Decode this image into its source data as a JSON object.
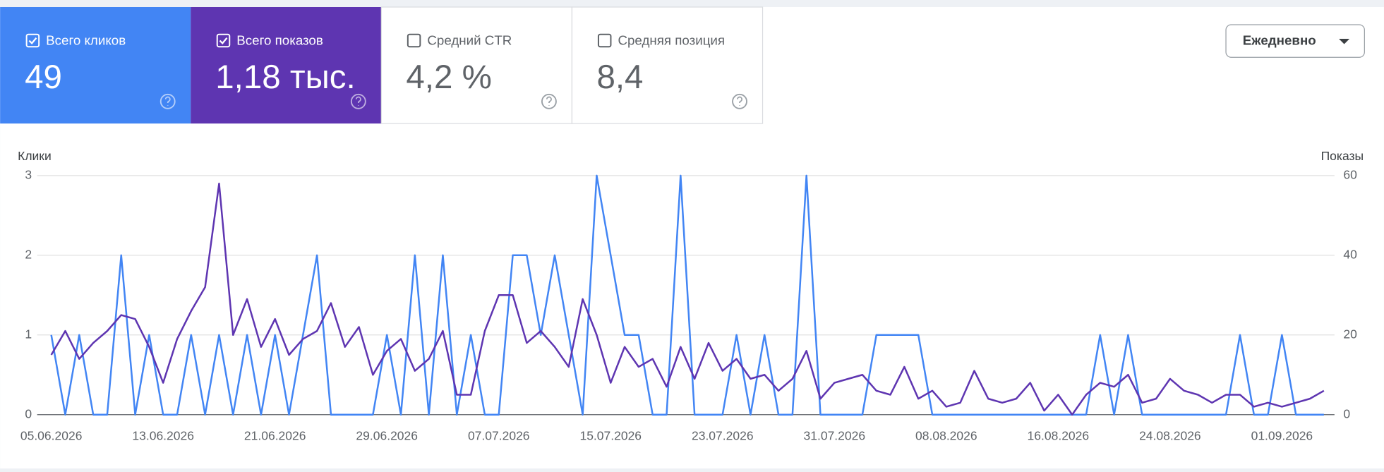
{
  "metrics": [
    {
      "label": "Всего кликов",
      "value": "49",
      "checked": true,
      "color": "#4285f4"
    },
    {
      "label": "Всего показов",
      "value": "1,18 тыс.",
      "checked": true,
      "color": "#5e35b1"
    },
    {
      "label": "Средний CTR",
      "value": "4,2 %",
      "checked": false,
      "color": "#ffffff"
    },
    {
      "label": "Средняя позиция",
      "value": "8,4",
      "checked": false,
      "color": "#ffffff"
    }
  ],
  "period_selector": "Ежедневно",
  "chart_data": {
    "type": "line",
    "y_label": "Клики",
    "y2_label": "Показы",
    "categories": [
      "05.06.2026",
      null,
      null,
      null,
      null,
      null,
      null,
      null,
      "13.06.2026",
      null,
      null,
      null,
      null,
      null,
      null,
      null,
      "21.06.2026",
      null,
      null,
      null,
      null,
      null,
      null,
      null,
      "29.06.2026",
      null,
      null,
      null,
      null,
      null,
      null,
      null,
      "07.07.2026",
      null,
      null,
      null,
      null,
      null,
      null,
      null,
      "15.07.2026",
      null,
      null,
      null,
      null,
      null,
      null,
      null,
      "23.07.2026",
      null,
      null,
      null,
      null,
      null,
      null,
      null,
      "31.07.2026",
      null,
      null,
      null,
      null,
      null,
      null,
      null,
      "08.08.2026",
      null,
      null,
      null,
      null,
      null,
      null,
      null,
      "16.08.2026",
      null,
      null,
      null,
      null,
      null,
      null,
      null,
      "24.08.2026",
      null,
      null,
      null,
      null,
      null,
      null,
      null,
      "01.09.2026",
      null,
      null,
      null
    ],
    "series": [
      {
        "color": "#4285f4",
        "values": [
          1,
          0,
          1,
          0,
          0,
          2,
          0,
          1,
          0,
          0,
          1,
          0,
          1,
          0,
          1,
          0,
          1,
          0,
          1,
          2,
          0,
          0,
          0,
          0,
          1,
          0,
          2,
          0,
          2,
          0,
          1,
          0,
          0,
          2,
          2,
          1,
          2,
          1,
          0,
          3,
          2,
          1,
          1,
          0,
          0,
          3,
          0,
          0,
          0,
          1,
          0,
          1,
          0,
          0,
          3,
          0,
          0,
          0,
          0,
          1,
          1,
          1,
          1,
          0,
          0,
          0,
          0,
          0,
          0,
          0,
          0,
          0,
          0,
          0,
          0,
          1,
          0,
          1,
          0,
          0,
          0,
          0,
          0,
          0,
          0,
          1,
          0,
          0,
          1,
          0,
          0,
          0
        ]
      },
      {
        "color": "#5e35b1",
        "axis": "y2",
        "values": [
          15,
          21,
          14,
          18,
          21,
          25,
          24,
          17,
          8,
          19,
          26,
          32,
          58,
          20,
          29,
          17,
          24,
          15,
          19,
          21,
          28,
          17,
          22,
          10,
          16,
          19,
          11,
          14,
          21,
          5,
          5,
          21,
          30,
          30,
          18,
          21,
          17,
          12,
          29,
          20,
          8,
          17,
          12,
          14,
          7,
          17,
          9,
          18,
          11,
          14,
          9,
          10,
          6,
          9,
          16,
          4,
          8,
          9,
          10,
          6,
          5,
          12,
          4,
          6,
          2,
          3,
          11,
          4,
          3,
          4,
          8,
          1,
          5,
          0,
          5,
          8,
          7,
          10,
          3,
          4,
          9,
          6,
          5,
          3,
          5,
          5,
          2,
          3,
          2,
          3,
          4,
          6
        ]
      }
    ],
    "ylim": [
      0,
      3
    ],
    "yticks": [
      0,
      1,
      2,
      3
    ],
    "y2lim": [
      0,
      60
    ],
    "y2ticks": [
      0,
      20,
      40,
      60
    ],
    "grid": true
  }
}
